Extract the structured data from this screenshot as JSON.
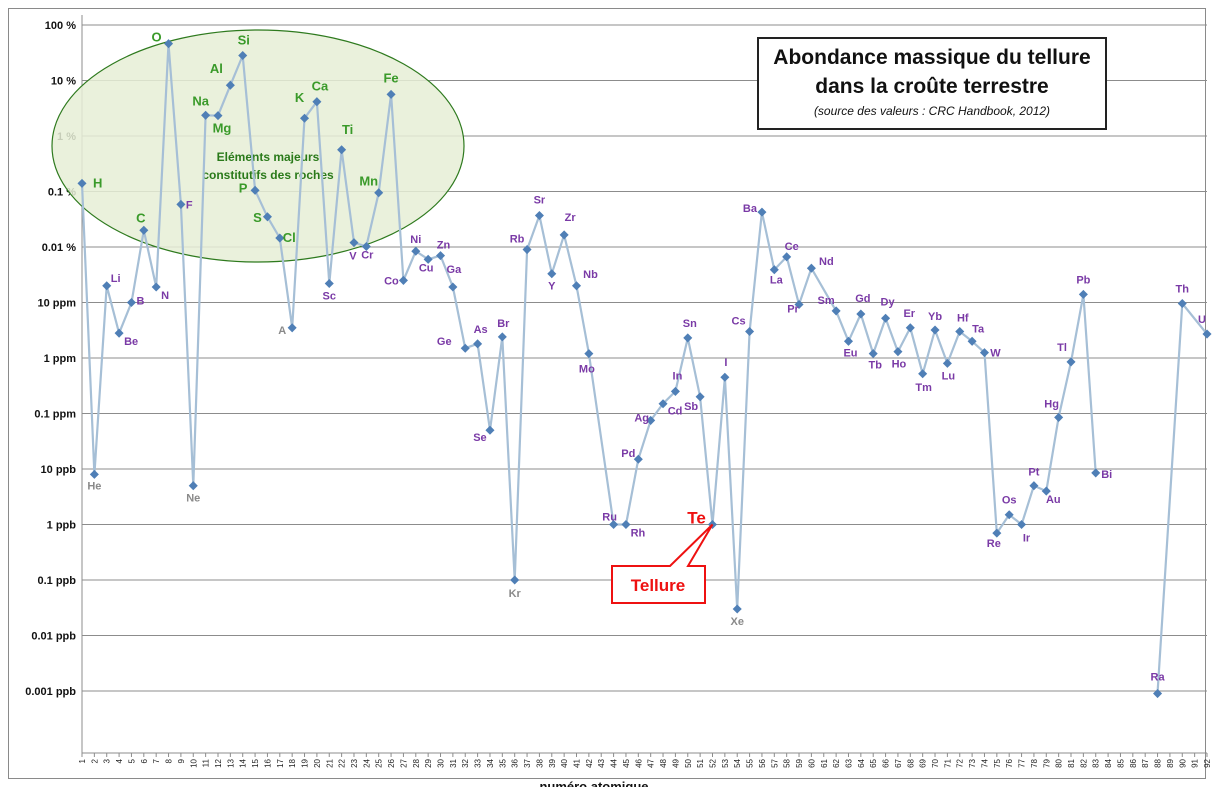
{
  "title_lines": [
    "Abondance massique du tellure",
    "dans la croûte terrestre"
  ],
  "subtitle": "(source des valeurs : CRC Handbook, 2012)",
  "xlabel": "numéro atomique",
  "ellipse_note_lines": [
    "Eléments majeurs",
    "constitutifs des roches"
  ],
  "callout_label": "Tellure",
  "colors": {
    "line": "#a6bfd6",
    "marker": "#4f7fb6",
    "major": "#3a9a2a",
    "trace": "#7a3aa6",
    "noble": "#8a8a8a",
    "highlight": "#ee1111",
    "ellipse_fill": "#e6efd6",
    "ellipse_stroke": "#2e7a1e",
    "grid": "#8c8c8c"
  },
  "chart_data": {
    "type": "line",
    "y_scale": "log",
    "y_unit": "mass fraction",
    "ylim": [
      1e-14,
      1
    ],
    "grid": "horizontal",
    "y_ticks": [
      {
        "value": 1,
        "label": "100 %"
      },
      {
        "value": 0.1,
        "label": "10 %"
      },
      {
        "value": 0.01,
        "label": "1 %"
      },
      {
        "value": 0.001,
        "label": "0.1 %"
      },
      {
        "value": 0.0001,
        "label": "0.01 %"
      },
      {
        "value": 1e-05,
        "label": "10 ppm"
      },
      {
        "value": 1e-06,
        "label": "1 ppm"
      },
      {
        "value": 1e-07,
        "label": "0.1 ppm"
      },
      {
        "value": 1e-08,
        "label": "10 ppb"
      },
      {
        "value": 1e-09,
        "label": "1 ppb"
      },
      {
        "value": 1e-10,
        "label": "0.1 ppb"
      },
      {
        "value": 1e-11,
        "label": "0.01 ppb"
      },
      {
        "value": 1e-12,
        "label": "0.001 ppb"
      }
    ],
    "x_ticks": [
      "1",
      "2",
      "3",
      "4",
      "5",
      "6",
      "7",
      "8",
      "9",
      "10",
      "11",
      "12",
      "13",
      "14",
      "15",
      "16",
      "17",
      "18",
      "19",
      "20",
      "21",
      "22",
      "23",
      "24",
      "25",
      "26",
      "27",
      "28",
      "29",
      "30",
      "31",
      "32",
      "33",
      "34",
      "35",
      "36",
      "37",
      "38",
      "39",
      "40",
      "41",
      "42",
      "43",
      "44",
      "45",
      "46",
      "47",
      "48",
      "49",
      "50",
      "51",
      "52",
      "53",
      "54",
      "55",
      "56",
      "57",
      "58",
      "59",
      "60",
      "61",
      "62",
      "63",
      "64",
      "65",
      "66",
      "67",
      "68",
      "69",
      "70",
      "71",
      "72",
      "73",
      "74",
      "75",
      "76",
      "77",
      "78",
      "79",
      "80",
      "81",
      "82",
      "83",
      "84",
      "85",
      "86",
      "87",
      "88",
      "89",
      "90",
      "91",
      "92"
    ],
    "points": [
      {
        "z": 1,
        "symbol": "H",
        "value": 0.0014,
        "group": "major"
      },
      {
        "z": 2,
        "symbol": "He",
        "value": 8e-09,
        "group": "noble"
      },
      {
        "z": 3,
        "symbol": "Li",
        "value": 2e-05,
        "group": "trace"
      },
      {
        "z": 4,
        "symbol": "Be",
        "value": 2.8e-06,
        "group": "trace"
      },
      {
        "z": 5,
        "symbol": "B",
        "value": 1e-05,
        "group": "trace"
      },
      {
        "z": 6,
        "symbol": "C",
        "value": 0.0002,
        "group": "major"
      },
      {
        "z": 7,
        "symbol": "N",
        "value": 1.9e-05,
        "group": "trace"
      },
      {
        "z": 8,
        "symbol": "O",
        "value": 0.461,
        "group": "major"
      },
      {
        "z": 9,
        "symbol": "F",
        "value": 0.000585,
        "group": "trace"
      },
      {
        "z": 10,
        "symbol": "Ne",
        "value": 5e-09,
        "group": "noble"
      },
      {
        "z": 11,
        "symbol": "Na",
        "value": 0.0236,
        "group": "major"
      },
      {
        "z": 12,
        "symbol": "Mg",
        "value": 0.0233,
        "group": "major"
      },
      {
        "z": 13,
        "symbol": "Al",
        "value": 0.0823,
        "group": "major"
      },
      {
        "z": 14,
        "symbol": "Si",
        "value": 0.282,
        "group": "major"
      },
      {
        "z": 15,
        "symbol": "P",
        "value": 0.00105,
        "group": "major"
      },
      {
        "z": 16,
        "symbol": "S",
        "value": 0.00035,
        "group": "major"
      },
      {
        "z": 17,
        "symbol": "Cl",
        "value": 0.000145,
        "group": "major"
      },
      {
        "z": 18,
        "symbol": "A",
        "value": 3.5e-06,
        "group": "noble"
      },
      {
        "z": 19,
        "symbol": "K",
        "value": 0.0209,
        "group": "major"
      },
      {
        "z": 20,
        "symbol": "Ca",
        "value": 0.0415,
        "group": "major"
      },
      {
        "z": 21,
        "symbol": "Sc",
        "value": 2.2e-05,
        "group": "trace"
      },
      {
        "z": 22,
        "symbol": "Ti",
        "value": 0.00565,
        "group": "major"
      },
      {
        "z": 23,
        "symbol": "V",
        "value": 0.00012,
        "group": "trace"
      },
      {
        "z": 24,
        "symbol": "Cr",
        "value": 0.000102,
        "group": "trace"
      },
      {
        "z": 25,
        "symbol": "Mn",
        "value": 0.00095,
        "group": "major"
      },
      {
        "z": 26,
        "symbol": "Fe",
        "value": 0.0563,
        "group": "major"
      },
      {
        "z": 27,
        "symbol": "Co",
        "value": 2.5e-05,
        "group": "trace"
      },
      {
        "z": 28,
        "symbol": "Ni",
        "value": 8.4e-05,
        "group": "trace"
      },
      {
        "z": 29,
        "symbol": "Cu",
        "value": 6e-05,
        "group": "trace"
      },
      {
        "z": 30,
        "symbol": "Zn",
        "value": 7e-05,
        "group": "trace"
      },
      {
        "z": 31,
        "symbol": "Ga",
        "value": 1.9e-05,
        "group": "trace"
      },
      {
        "z": 32,
        "symbol": "Ge",
        "value": 1.5e-06,
        "group": "trace"
      },
      {
        "z": 33,
        "symbol": "As",
        "value": 1.8e-06,
        "group": "trace"
      },
      {
        "z": 34,
        "symbol": "Se",
        "value": 5e-08,
        "group": "trace"
      },
      {
        "z": 35,
        "symbol": "Br",
        "value": 2.4e-06,
        "group": "trace"
      },
      {
        "z": 36,
        "symbol": "Kr",
        "value": 1e-10,
        "group": "noble"
      },
      {
        "z": 37,
        "symbol": "Rb",
        "value": 9e-05,
        "group": "trace"
      },
      {
        "z": 38,
        "symbol": "Sr",
        "value": 0.00037,
        "group": "trace"
      },
      {
        "z": 39,
        "symbol": "Y",
        "value": 3.3e-05,
        "group": "trace"
      },
      {
        "z": 40,
        "symbol": "Zr",
        "value": 0.000165,
        "group": "trace"
      },
      {
        "z": 41,
        "symbol": "Nb",
        "value": 2e-05,
        "group": "trace"
      },
      {
        "z": 42,
        "symbol": "Mo",
        "value": 1.2e-06,
        "group": "trace"
      },
      {
        "z": 44,
        "symbol": "Ru",
        "value": 1e-09,
        "group": "trace"
      },
      {
        "z": 45,
        "symbol": "Rh",
        "value": 1e-09,
        "group": "trace"
      },
      {
        "z": 46,
        "symbol": "Pd",
        "value": 1.5e-08,
        "group": "trace"
      },
      {
        "z": 47,
        "symbol": "Ag",
        "value": 7.5e-08,
        "group": "trace"
      },
      {
        "z": 48,
        "symbol": "Cd",
        "value": 1.5e-07,
        "group": "trace"
      },
      {
        "z": 49,
        "symbol": "In",
        "value": 2.5e-07,
        "group": "trace"
      },
      {
        "z": 50,
        "symbol": "Sn",
        "value": 2.3e-06,
        "group": "trace"
      },
      {
        "z": 51,
        "symbol": "Sb",
        "value": 2e-07,
        "group": "trace"
      },
      {
        "z": 52,
        "symbol": "Te",
        "value": 1e-09,
        "group": "highlight"
      },
      {
        "z": 53,
        "symbol": "I",
        "value": 4.5e-07,
        "group": "trace"
      },
      {
        "z": 54,
        "symbol": "Xe",
        "value": 3e-11,
        "group": "noble"
      },
      {
        "z": 55,
        "symbol": "Cs",
        "value": 3e-06,
        "group": "trace"
      },
      {
        "z": 56,
        "symbol": "Ba",
        "value": 0.000425,
        "group": "trace"
      },
      {
        "z": 57,
        "symbol": "La",
        "value": 3.9e-05,
        "group": "trace"
      },
      {
        "z": 58,
        "symbol": "Ce",
        "value": 6.65e-05,
        "group": "trace"
      },
      {
        "z": 59,
        "symbol": "Pr",
        "value": 9.2e-06,
        "group": "trace"
      },
      {
        "z": 60,
        "symbol": "Nd",
        "value": 4.15e-05,
        "group": "trace"
      },
      {
        "z": 62,
        "symbol": "Sm",
        "value": 7.05e-06,
        "group": "trace"
      },
      {
        "z": 63,
        "symbol": "Eu",
        "value": 2e-06,
        "group": "trace"
      },
      {
        "z": 64,
        "symbol": "Gd",
        "value": 6.2e-06,
        "group": "trace"
      },
      {
        "z": 65,
        "symbol": "Tb",
        "value": 1.2e-06,
        "group": "trace"
      },
      {
        "z": 66,
        "symbol": "Dy",
        "value": 5.2e-06,
        "group": "trace"
      },
      {
        "z": 67,
        "symbol": "Ho",
        "value": 1.3e-06,
        "group": "trace"
      },
      {
        "z": 68,
        "symbol": "Er",
        "value": 3.5e-06,
        "group": "trace"
      },
      {
        "z": 69,
        "symbol": "Tm",
        "value": 5.2e-07,
        "group": "trace"
      },
      {
        "z": 70,
        "symbol": "Yb",
        "value": 3.2e-06,
        "group": "trace"
      },
      {
        "z": 71,
        "symbol": "Lu",
        "value": 8e-07,
        "group": "trace"
      },
      {
        "z": 72,
        "symbol": "Hf",
        "value": 3e-06,
        "group": "trace"
      },
      {
        "z": 73,
        "symbol": "Ta",
        "value": 2e-06,
        "group": "trace"
      },
      {
        "z": 74,
        "symbol": "W",
        "value": 1.25e-06,
        "group": "trace"
      },
      {
        "z": 75,
        "symbol": "Re",
        "value": 7e-10,
        "group": "trace"
      },
      {
        "z": 76,
        "symbol": "Os",
        "value": 1.5e-09,
        "group": "trace"
      },
      {
        "z": 77,
        "symbol": "Ir",
        "value": 1e-09,
        "group": "trace"
      },
      {
        "z": 78,
        "symbol": "Pt",
        "value": 5e-09,
        "group": "trace"
      },
      {
        "z": 79,
        "symbol": "Au",
        "value": 4e-09,
        "group": "trace"
      },
      {
        "z": 80,
        "symbol": "Hg",
        "value": 8.5e-08,
        "group": "trace"
      },
      {
        "z": 81,
        "symbol": "Tl",
        "value": 8.5e-07,
        "group": "trace"
      },
      {
        "z": 82,
        "symbol": "Pb",
        "value": 1.4e-05,
        "group": "trace"
      },
      {
        "z": 83,
        "symbol": "Bi",
        "value": 8.5e-09,
        "group": "trace"
      },
      {
        "z": 88,
        "symbol": "Ra",
        "value": 9e-13,
        "group": "trace"
      },
      {
        "z": 90,
        "symbol": "Th",
        "value": 9.6e-06,
        "group": "trace"
      },
      {
        "z": 92,
        "symbol": "U",
        "value": 2.7e-06,
        "group": "trace"
      }
    ]
  }
}
